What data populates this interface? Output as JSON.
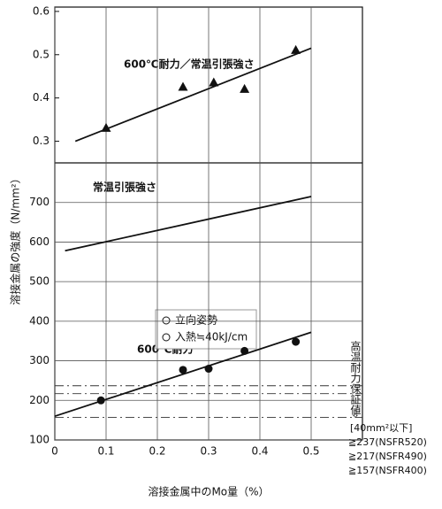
{
  "chart_data": {
    "type": "scatter",
    "x_label": "溶接金属中のMo量（%）",
    "y_label": "溶接金属の強度（N/mm²）",
    "xlim": [
      0,
      0.6
    ],
    "xticks": [
      0,
      0.1,
      0.2,
      0.3,
      0.4,
      0.5
    ],
    "ylim": [
      100,
      800
    ],
    "yticks": [
      100,
      200,
      300,
      400,
      500,
      600,
      700
    ],
    "y2lim": [
      0.25,
      0.61
    ],
    "y2ticks": [
      0.3,
      0.4,
      0.5,
      0.6
    ],
    "grid": true,
    "series": [
      {
        "kind": "scatter",
        "marker": "triangle",
        "axis": "y2",
        "color": "#111111",
        "x": [
          0.1,
          0.25,
          0.31,
          0.37,
          0.47
        ],
        "values": [
          0.33,
          0.425,
          0.435,
          0.42,
          0.51
        ]
      },
      {
        "kind": "line",
        "axis": "y2",
        "color": "#111111",
        "x": [
          0.04,
          0.5
        ],
        "values": [
          0.3,
          0.515
        ]
      },
      {
        "kind": "line",
        "color": "#111111",
        "x": [
          0.02,
          0.5
        ],
        "values": [
          578,
          715
        ]
      },
      {
        "kind": "scatter",
        "marker": "circle",
        "color": "#111111",
        "x": [
          0.09,
          0.25,
          0.3,
          0.37,
          0.47
        ],
        "values": [
          200,
          277,
          280,
          325,
          348
        ]
      },
      {
        "kind": "line",
        "color": "#111111",
        "x": [
          0,
          0.5
        ],
        "values": [
          160,
          372
        ]
      }
    ],
    "annotations": [
      "600℃耐力／常温引張強さ",
      "常温引張強さ",
      "600℃耐力"
    ],
    "legend_notes": [
      "立向姿勢",
      "入熱≒40kJ/cm"
    ],
    "reference_title": "高温耐力保証値",
    "reference_arrow": "⇩",
    "reference_condition": "[40mm²以下]",
    "reference_lines": [
      {
        "value": 237,
        "label": "≧237(NSFR520)"
      },
      {
        "value": 217,
        "label": "≧217(NSFR490)"
      },
      {
        "value": 157,
        "label": "≧157(NSFR400)"
      }
    ]
  }
}
